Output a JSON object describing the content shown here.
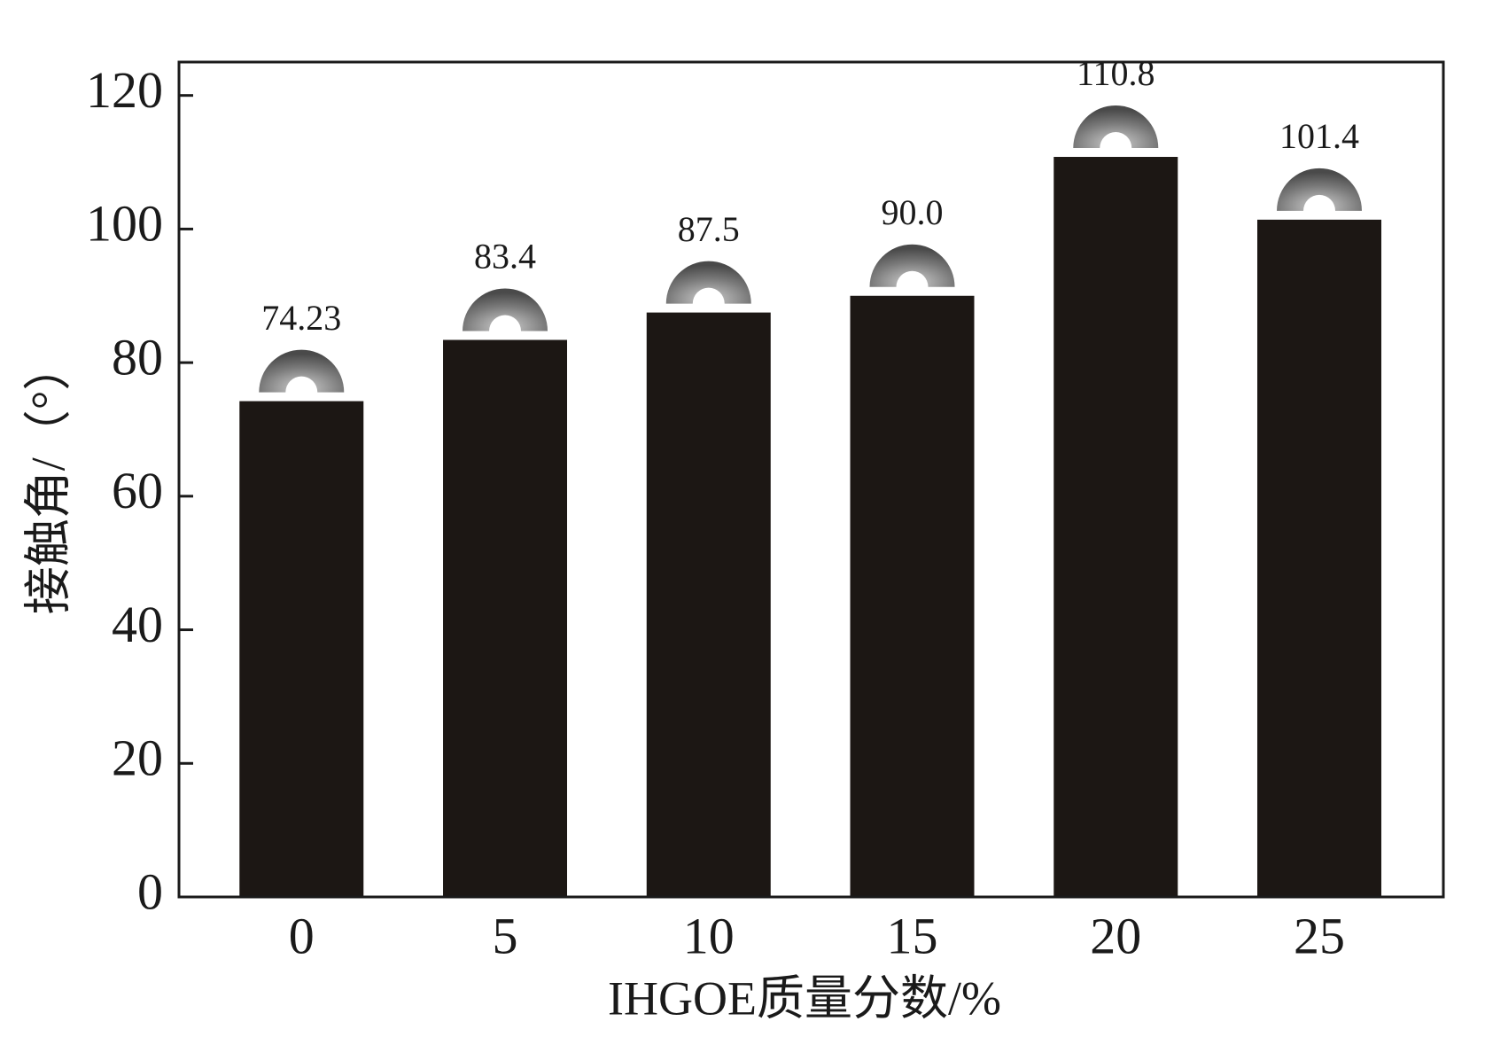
{
  "chart_data": {
    "type": "bar",
    "x_label": "IHGOE质量分数/%",
    "y_label": "接触角/（°）",
    "categories": [
      "0",
      "5",
      "10",
      "15",
      "20",
      "25"
    ],
    "values": [
      74.23,
      83.4,
      87.5,
      90.0,
      110.8,
      101.4
    ],
    "value_labels": [
      "74.23",
      "83.4",
      "87.5",
      "90.0",
      "110.8",
      "101.4"
    ],
    "color": "#1c1714",
    "ylim": [
      0,
      125
    ],
    "yticks": [
      0,
      20,
      40,
      60,
      80,
      100,
      120
    ],
    "grid": false
  }
}
